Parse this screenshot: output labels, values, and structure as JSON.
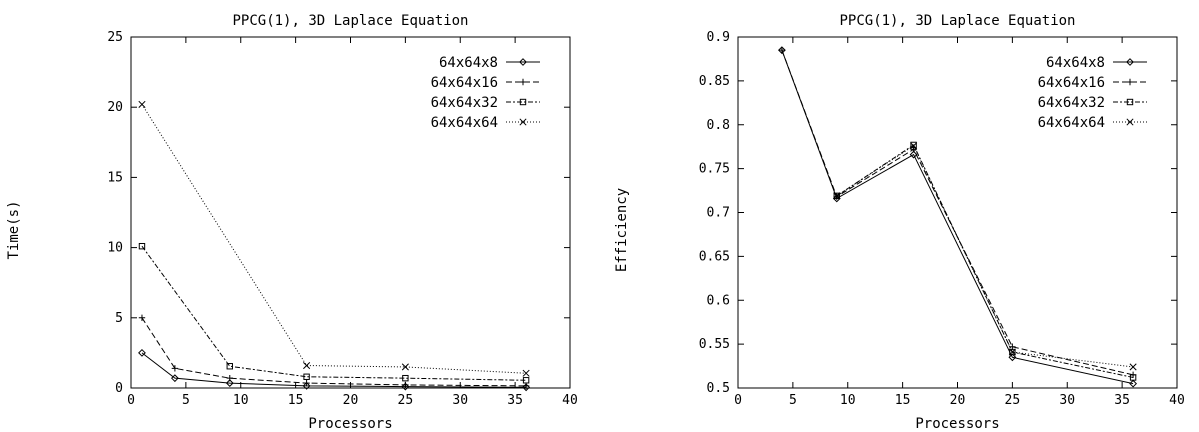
{
  "chart_data": [
    {
      "type": "line",
      "title": "PPCG(1), 3D Laplace Equation",
      "xlabel": "Processors",
      "ylabel": "Time(s)",
      "xlim": [
        0,
        40
      ],
      "ylim": [
        0,
        25
      ],
      "xticks": [
        0,
        5,
        10,
        15,
        20,
        25,
        30,
        35,
        40
      ],
      "yticks": [
        0,
        5,
        10,
        15,
        20,
        25
      ],
      "grid": false,
      "legend_position": "top-right",
      "series": [
        {
          "name": "64x64x8",
          "marker": "diamond",
          "dash": "solid",
          "x": [
            1,
            4,
            9,
            16,
            25,
            36
          ],
          "y": [
            2.5,
            0.7,
            0.35,
            0.15,
            0.1,
            0.05
          ]
        },
        {
          "name": "64x64x16",
          "marker": "plus",
          "dash": "dashed",
          "x": [
            1,
            4,
            9,
            16,
            25,
            36
          ],
          "y": [
            5.0,
            1.4,
            0.7,
            0.35,
            0.22,
            0.15
          ]
        },
        {
          "name": "64x64x32",
          "marker": "square",
          "dash": "dashdot",
          "x": [
            1,
            9,
            16,
            25,
            36
          ],
          "y": [
            10.1,
            1.55,
            0.8,
            0.7,
            0.55
          ]
        },
        {
          "name": "64x64x64",
          "marker": "cross",
          "dash": "dotted",
          "x": [
            1,
            16,
            25,
            36
          ],
          "y": [
            20.2,
            1.6,
            1.5,
            1.05
          ]
        }
      ]
    },
    {
      "type": "line",
      "title": "PPCG(1), 3D Laplace Equation",
      "xlabel": "Processors",
      "ylabel": "Efficiency",
      "xlim": [
        0,
        40
      ],
      "ylim": [
        0.5,
        0.9
      ],
      "xticks": [
        0,
        5,
        10,
        15,
        20,
        25,
        30,
        35,
        40
      ],
      "yticks": [
        0.5,
        0.55,
        0.6,
        0.65,
        0.7,
        0.75,
        0.8,
        0.85,
        0.9
      ],
      "grid": false,
      "legend_position": "top-right",
      "series": [
        {
          "name": "64x64x8",
          "marker": "diamond",
          "dash": "solid",
          "x": [
            4,
            9,
            16,
            25,
            36
          ],
          "y": [
            0.885,
            0.716,
            0.766,
            0.535,
            0.505
          ]
        },
        {
          "name": "64x64x16",
          "marker": "plus",
          "dash": "dashed",
          "x": [
            4,
            9,
            16,
            25,
            36
          ],
          "y": [
            0.885,
            0.718,
            0.772,
            0.547,
            0.515
          ]
        },
        {
          "name": "64x64x32",
          "marker": "square",
          "dash": "dashdot",
          "x": [
            9,
            16,
            25,
            36
          ],
          "y": [
            0.719,
            0.777,
            0.541,
            0.512
          ]
        },
        {
          "name": "64x64x64",
          "marker": "cross",
          "dash": "dotted",
          "x": [
            9,
            16,
            25,
            36
          ],
          "y": [
            0.719,
            0.776,
            0.541,
            0.524
          ]
        }
      ]
    }
  ]
}
